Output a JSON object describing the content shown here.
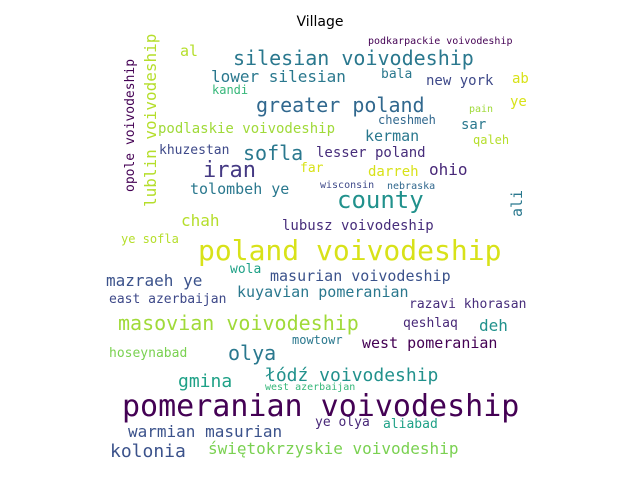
{
  "title": "Village",
  "words": [
    {
      "text": "pomeranian voivodeship",
      "color": "#440154"
    },
    {
      "text": "poland voivodeship",
      "color": "#d8e219"
    },
    {
      "text": "county",
      "color": "#21918c"
    },
    {
      "text": "silesian voivodeship",
      "color": "#2a788e"
    },
    {
      "text": "greater poland",
      "color": "#31688e"
    },
    {
      "text": "iran",
      "color": "#443983"
    },
    {
      "text": "sofla",
      "color": "#2a788e"
    },
    {
      "text": "masovian voivodeship",
      "color": "#a0da39"
    },
    {
      "text": "olya",
      "color": "#2a788e"
    },
    {
      "text": "łódź voivodeship",
      "color": "#21918c"
    },
    {
      "text": "gmina",
      "color": "#1fa187"
    },
    {
      "text": "kolonia",
      "color": "#3b528b"
    },
    {
      "text": "warmian masurian",
      "color": "#3b528b"
    },
    {
      "text": "świętokrzyskie voivodeship",
      "color": "#7ad151"
    },
    {
      "text": "lower silesian",
      "color": "#2a788e"
    },
    {
      "text": "mazraeh ye",
      "color": "#3b528b"
    },
    {
      "text": "masurian voivodeship",
      "color": "#3b528b"
    },
    {
      "text": "kuyavian pomeranian",
      "color": "#2a788e"
    },
    {
      "text": "chah",
      "color": "#b5de2b"
    },
    {
      "text": "tolombeh ye",
      "color": "#2a788e"
    },
    {
      "text": "lubusz voivodeship",
      "color": "#472d7b"
    },
    {
      "text": "west pomeranian",
      "color": "#440154"
    },
    {
      "text": "deh",
      "color": "#21918c"
    },
    {
      "text": "ohio",
      "color": "#482878"
    },
    {
      "text": "kerman",
      "color": "#2a788e"
    },
    {
      "text": "lesser poland",
      "color": "#472d7b"
    },
    {
      "text": "podlaskie voivodeship",
      "color": "#a0da39"
    },
    {
      "text": "khuzestan",
      "color": "#3e4989"
    },
    {
      "text": "new york",
      "color": "#3e4989"
    },
    {
      "text": "sar",
      "color": "#2a788e"
    },
    {
      "text": "darreh",
      "color": "#d8e219"
    },
    {
      "text": "ali",
      "color": "#2a788e"
    },
    {
      "text": "qeshlaq",
      "color": "#482878"
    },
    {
      "text": "razavi khorasan",
      "color": "#472d7b"
    },
    {
      "text": "east azerbaijan",
      "color": "#3e4989"
    },
    {
      "text": "hoseynabad",
      "color": "#7ad151"
    },
    {
      "text": "mowtowr",
      "color": "#2a788e"
    },
    {
      "text": "aliabad",
      "color": "#1fa187"
    },
    {
      "text": "ye olya",
      "color": "#482878"
    },
    {
      "text": "wola",
      "color": "#1fa187"
    },
    {
      "text": "ye sofla",
      "color": "#b5de2b"
    },
    {
      "text": "al",
      "color": "#b5de2b"
    },
    {
      "text": "bala",
      "color": "#2a788e"
    },
    {
      "text": "kandi",
      "color": "#35b779"
    },
    {
      "text": "ab",
      "color": "#d8e219"
    },
    {
      "text": "ye",
      "color": "#d8e219"
    },
    {
      "text": "pain",
      "color": "#a0da39"
    },
    {
      "text": "cheshmeh",
      "color": "#31688e"
    },
    {
      "text": "qaleh",
      "color": "#b5de2b"
    },
    {
      "text": "far",
      "color": "#d8e219"
    },
    {
      "text": "wisconsin",
      "color": "#3e4989"
    },
    {
      "text": "nebraska",
      "color": "#31688e"
    },
    {
      "text": "west azerbaijan",
      "color": "#35b779"
    },
    {
      "text": "podkarpackie voivodeship",
      "color": "#440154"
    },
    {
      "text": "opole voivodeship",
      "color": "#440154"
    },
    {
      "text": "lublin voivodeship",
      "color": "#b5de2b"
    }
  ]
}
